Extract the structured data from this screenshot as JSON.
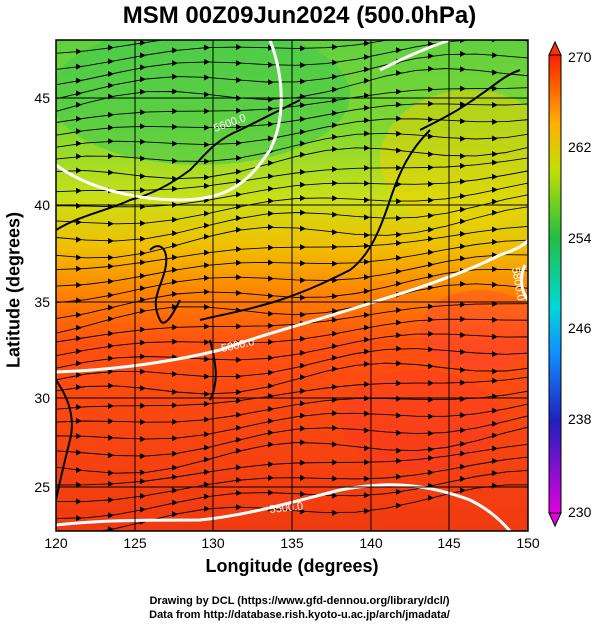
{
  "title": "MSM 00Z09Jun2024 (500.0hPa)",
  "axes": {
    "xlabel": "Longitude (degrees)",
    "ylabel": "Latitude  (degrees)",
    "xticks": [
      "120",
      "125",
      "130",
      "135",
      "140",
      "145",
      "150"
    ],
    "yticks": [
      "25",
      "30",
      "35",
      "40",
      "45"
    ]
  },
  "colorbar": {
    "labels": [
      "270",
      "262",
      "254",
      "246",
      "238",
      "230"
    ]
  },
  "contour_labels": [
    "5600.0",
    "5800.0",
    "5800.0",
    "5500.0"
  ],
  "credits": {
    "line1": "Drawing by DCL (https://www.gfd-dennou.org/library/dcl/)",
    "line2": "Data from http://database.rish.kyoto-u.ac.jp/arch/jmadata/"
  },
  "chart_data": {
    "type": "heatmap",
    "title": "MSM 00Z09Jun2024 (500.0hPa)",
    "xlabel": "Longitude (degrees)",
    "ylabel": "Latitude  (degrees)",
    "xlim": [
      120,
      150
    ],
    "ylim": [
      22.5,
      47.5
    ],
    "colorbar_range": [
      230,
      270
    ],
    "colorbar_ticks": [
      230,
      238,
      246,
      254,
      262,
      270
    ],
    "contours": [
      {
        "label": "5600.0",
        "lon": 132.5,
        "lat": 43.8
      },
      {
        "label": "5800.0",
        "lon": 132.3,
        "lat": 33.0
      },
      {
        "label": "5800.0",
        "lon": 149.0,
        "lat": 36.5
      },
      {
        "label": "5500.0",
        "lon": 134.0,
        "lat": 25.0
      }
    ],
    "grid": true,
    "colors": {
      "cold": "#d000d0",
      "cool": "#1030ff",
      "mid": "#00d0d0",
      "warmish": "#30c030",
      "warm": "#ffd000",
      "hot": "#ff3000"
    }
  }
}
